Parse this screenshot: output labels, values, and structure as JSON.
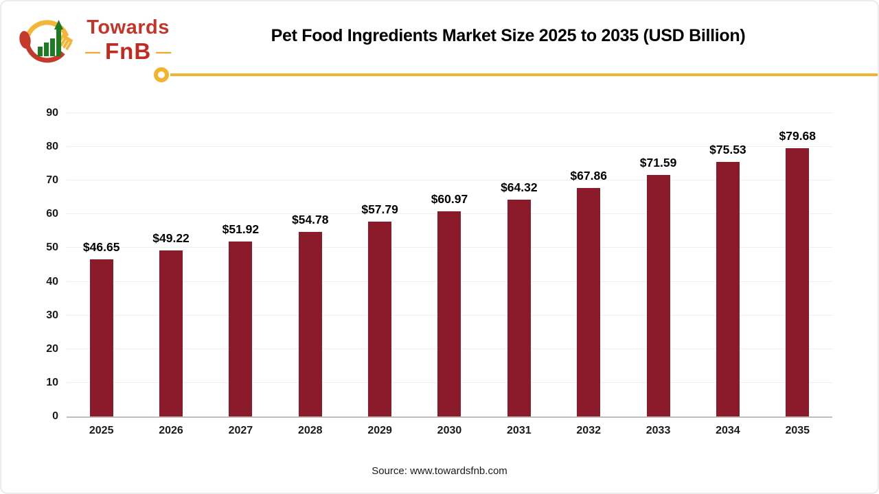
{
  "page": {
    "title": "Pet Food Ingredients Market Size 2025 to 2035 (USD Billion)",
    "source": "Source: www.towardsfnb.com"
  },
  "logo": {
    "brand_top": "Towards",
    "brand_bottom": "FnB",
    "dash_left": "—",
    "dash_right": "—",
    "colors": {
      "red": "#c43429",
      "gold": "#f2b32e",
      "green": "#1e7a23"
    }
  },
  "chart_data": {
    "type": "bar",
    "title": "Pet Food Ingredients Market Size 2025 to 2035 (USD Billion)",
    "categories": [
      "2025",
      "2026",
      "2027",
      "2028",
      "2029",
      "2030",
      "2031",
      "2032",
      "2033",
      "2034",
      "2035"
    ],
    "values": [
      46.65,
      49.22,
      51.92,
      54.78,
      57.79,
      60.97,
      64.32,
      67.86,
      71.59,
      75.53,
      79.68
    ],
    "value_labels": [
      "$46.65",
      "$49.22",
      "$51.92",
      "$54.78",
      "$57.79",
      "$60.97",
      "$64.32",
      "$67.86",
      "$71.59",
      "$75.53",
      "$79.68"
    ],
    "xlabel": "",
    "ylabel": "",
    "ylim": [
      0,
      90
    ],
    "yticks": [
      0,
      10,
      20,
      30,
      40,
      50,
      60,
      70,
      80,
      90
    ],
    "grid": "horizontal",
    "legend_position": "none",
    "bar_color": "#8b1a2b",
    "unit": "USD Billion"
  }
}
